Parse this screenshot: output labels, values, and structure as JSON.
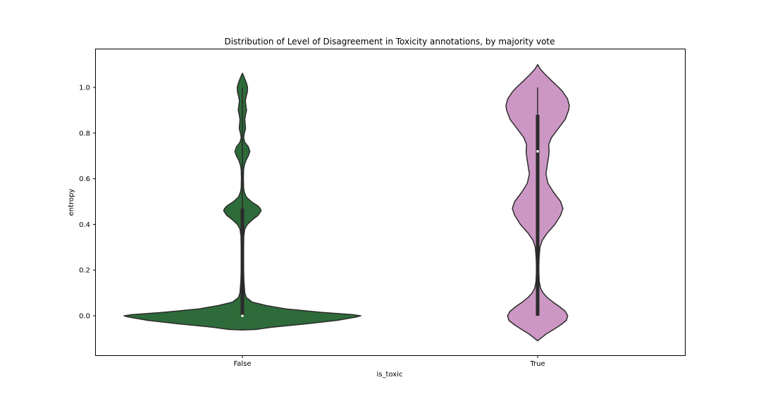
{
  "chart_data": {
    "type": "violin",
    "title": "Distribution of Level of Disagreement in Toxicity annotations, by majority vote",
    "xlabel": "is_toxic",
    "ylabel": "entropy",
    "ylim": [
      -0.17,
      1.17
    ],
    "yticks": [
      "0.0",
      "0.2",
      "0.4",
      "0.6",
      "0.8",
      "1.0"
    ],
    "categories": [
      "False",
      "True"
    ],
    "grid": false,
    "series": [
      {
        "category": "False",
        "color": "#2e6b3a",
        "min": 0.0,
        "q1": 0.0,
        "median": 0.0,
        "q3": 0.47,
        "max": 1.0,
        "density": [
          [
            -0.062,
            0.0
          ],
          [
            -0.06,
            0.07
          ],
          [
            -0.05,
            0.15
          ],
          [
            -0.035,
            0.33
          ],
          [
            -0.02,
            0.48
          ],
          [
            -0.005,
            0.58
          ],
          [
            0.0,
            0.6
          ],
          [
            0.005,
            0.56
          ],
          [
            0.015,
            0.4
          ],
          [
            0.03,
            0.22
          ],
          [
            0.045,
            0.12
          ],
          [
            0.06,
            0.05
          ],
          [
            0.08,
            0.02
          ],
          [
            0.1,
            0.012
          ],
          [
            0.15,
            0.008
          ],
          [
            0.2,
            0.006
          ],
          [
            0.25,
            0.006
          ],
          [
            0.3,
            0.006
          ],
          [
            0.35,
            0.007
          ],
          [
            0.38,
            0.012
          ],
          [
            0.4,
            0.025
          ],
          [
            0.42,
            0.05
          ],
          [
            0.44,
            0.08
          ],
          [
            0.46,
            0.095
          ],
          [
            0.47,
            0.09
          ],
          [
            0.48,
            0.08
          ],
          [
            0.5,
            0.045
          ],
          [
            0.52,
            0.02
          ],
          [
            0.54,
            0.01
          ],
          [
            0.56,
            0.006
          ],
          [
            0.6,
            0.005
          ],
          [
            0.64,
            0.006
          ],
          [
            0.66,
            0.01
          ],
          [
            0.68,
            0.018
          ],
          [
            0.7,
            0.03
          ],
          [
            0.72,
            0.038
          ],
          [
            0.74,
            0.03
          ],
          [
            0.76,
            0.012
          ],
          [
            0.78,
            0.006
          ],
          [
            0.8,
            0.01
          ],
          [
            0.82,
            0.016
          ],
          [
            0.84,
            0.014
          ],
          [
            0.86,
            0.012
          ],
          [
            0.88,
            0.016
          ],
          [
            0.9,
            0.021
          ],
          [
            0.92,
            0.018
          ],
          [
            0.94,
            0.015
          ],
          [
            0.96,
            0.019
          ],
          [
            0.98,
            0.025
          ],
          [
            1.0,
            0.026
          ],
          [
            1.02,
            0.02
          ],
          [
            1.04,
            0.011
          ],
          [
            1.055,
            0.004
          ],
          [
            1.062,
            0.0
          ]
        ]
      },
      {
        "category": "True",
        "color": "#cc97c4",
        "min": 0.0,
        "q1": 0.0,
        "median": 0.72,
        "q3": 0.88,
        "max": 1.0,
        "density": [
          [
            -0.11,
            0.0
          ],
          [
            -0.1,
            0.012
          ],
          [
            -0.08,
            0.037
          ],
          [
            -0.06,
            0.07
          ],
          [
            -0.04,
            0.1
          ],
          [
            -0.02,
            0.125
          ],
          [
            0.0,
            0.131
          ],
          [
            0.02,
            0.12
          ],
          [
            0.04,
            0.095
          ],
          [
            0.06,
            0.067
          ],
          [
            0.08,
            0.042
          ],
          [
            0.1,
            0.024
          ],
          [
            0.12,
            0.013
          ],
          [
            0.15,
            0.007
          ],
          [
            0.2,
            0.005
          ],
          [
            0.25,
            0.006
          ],
          [
            0.3,
            0.01
          ],
          [
            0.33,
            0.02
          ],
          [
            0.36,
            0.04
          ],
          [
            0.4,
            0.075
          ],
          [
            0.44,
            0.1
          ],
          [
            0.47,
            0.11
          ],
          [
            0.5,
            0.1
          ],
          [
            0.54,
            0.07
          ],
          [
            0.58,
            0.045
          ],
          [
            0.62,
            0.036
          ],
          [
            0.66,
            0.042
          ],
          [
            0.7,
            0.048
          ],
          [
            0.72,
            0.05
          ],
          [
            0.75,
            0.048
          ],
          [
            0.78,
            0.06
          ],
          [
            0.82,
            0.09
          ],
          [
            0.86,
            0.12
          ],
          [
            0.9,
            0.135
          ],
          [
            0.92,
            0.138
          ],
          [
            0.95,
            0.13
          ],
          [
            0.98,
            0.11
          ],
          [
            1.0,
            0.092
          ],
          [
            1.03,
            0.06
          ],
          [
            1.06,
            0.03
          ],
          [
            1.08,
            0.012
          ],
          [
            1.1,
            0.0
          ]
        ]
      }
    ]
  }
}
